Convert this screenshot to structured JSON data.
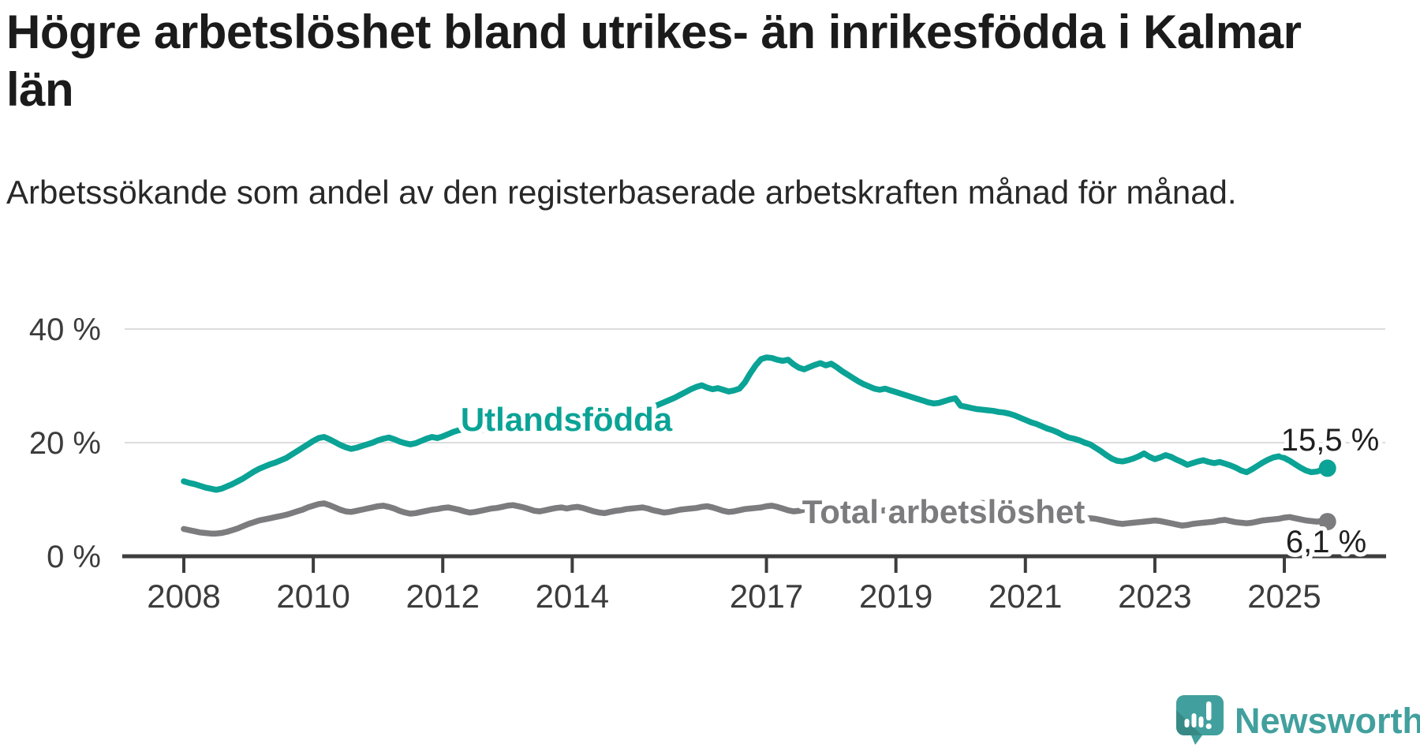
{
  "chart_data": {
    "type": "line",
    "title": "Högre arbetslöshet bland utrikes- än inrikesfödda i Kalmar län",
    "subtitle": "Arbetssökande som andel av den registerbaserade arbetskraften månad för månad.",
    "x_unit": "month",
    "x_start": "2008-01",
    "x_end": "2025-09",
    "ylim": [
      0,
      42
    ],
    "grid": "horizontal",
    "y_ticks": [
      {
        "label": "0 %",
        "value": 0
      },
      {
        "label": "20 %",
        "value": 20
      },
      {
        "label": "40 %",
        "value": 40
      }
    ],
    "x_ticks": [
      {
        "label": "2008",
        "year": 2008
      },
      {
        "label": "2010",
        "year": 2010
      },
      {
        "label": "2012",
        "year": 2012
      },
      {
        "label": "2014",
        "year": 2014
      },
      {
        "label": "2017",
        "year": 2017
      },
      {
        "label": "2019",
        "year": 2019
      },
      {
        "label": "2021",
        "year": 2021
      },
      {
        "label": "2023",
        "year": 2023
      },
      {
        "label": "2025",
        "year": 2025
      }
    ],
    "series": [
      {
        "name": "Utlandsfödda",
        "color": "#0aa396",
        "end_label": "15,5 %",
        "last_value": 15.5,
        "values": [
          13.2,
          12.9,
          12.7,
          12.4,
          12.1,
          11.9,
          11.7,
          11.9,
          12.3,
          12.7,
          13.2,
          13.7,
          14.3,
          14.9,
          15.4,
          15.8,
          16.2,
          16.5,
          16.9,
          17.3,
          17.9,
          18.5,
          19.1,
          19.7,
          20.3,
          20.8,
          21.0,
          20.6,
          20.1,
          19.6,
          19.2,
          18.9,
          19.1,
          19.4,
          19.7,
          20.0,
          20.4,
          20.7,
          20.9,
          20.6,
          20.2,
          19.9,
          19.7,
          19.9,
          20.3,
          20.7,
          21.0,
          20.8,
          21.1,
          21.5,
          21.9,
          22.2,
          22.4,
          22.1,
          21.9,
          22.1,
          22.4,
          22.6,
          22.4,
          22.7,
          23.0,
          23.3,
          23.5,
          23.2,
          22.9,
          23.1,
          22.8,
          22.6,
          22.9,
          23.2,
          23.4,
          23.3,
          23.5,
          23.7,
          23.6,
          23.4,
          23.7,
          24.0,
          24.2,
          24.1,
          24.4,
          24.7,
          24.9,
          25.1,
          25.4,
          25.7,
          26.0,
          26.3,
          26.7,
          27.1,
          27.5,
          27.9,
          28.4,
          28.9,
          29.4,
          29.8,
          30.1,
          29.7,
          29.4,
          29.6,
          29.3,
          29.0,
          29.2,
          29.5,
          30.6,
          32.2,
          33.6,
          34.7,
          35.0,
          34.9,
          34.6,
          34.4,
          34.6,
          33.8,
          33.2,
          32.9,
          33.3,
          33.7,
          34.0,
          33.6,
          33.9,
          33.3,
          32.6,
          32.0,
          31.4,
          30.8,
          30.3,
          29.9,
          29.5,
          29.3,
          29.5,
          29.2,
          28.9,
          28.6,
          28.3,
          28.0,
          27.7,
          27.4,
          27.1,
          26.9,
          27.0,
          27.3,
          27.6,
          27.8,
          26.5,
          26.3,
          26.1,
          25.9,
          25.8,
          25.7,
          25.6,
          25.4,
          25.3,
          25.1,
          24.8,
          24.4,
          24.0,
          23.6,
          23.3,
          22.9,
          22.5,
          22.2,
          21.8,
          21.3,
          20.9,
          20.7,
          20.4,
          20.0,
          19.7,
          19.1,
          18.5,
          17.8,
          17.2,
          16.8,
          16.7,
          16.9,
          17.2,
          17.6,
          18.1,
          17.5,
          17.1,
          17.4,
          17.8,
          17.5,
          17.0,
          16.6,
          16.1,
          16.4,
          16.7,
          16.9,
          16.6,
          16.4,
          16.6,
          16.3,
          16.0,
          15.6,
          15.1,
          14.8,
          15.3,
          15.9,
          16.5,
          17.0,
          17.4,
          17.6,
          17.3,
          16.8,
          16.2,
          15.6,
          15.1,
          14.8,
          14.9,
          15.2,
          15.5
        ]
      },
      {
        "name": "Total arbetslöshet",
        "color": "#7c7c7f",
        "end_label": "6,1 %",
        "last_value": 6.1,
        "values": [
          4.8,
          4.6,
          4.4,
          4.2,
          4.1,
          4.0,
          4.0,
          4.1,
          4.3,
          4.6,
          4.9,
          5.3,
          5.7,
          6.0,
          6.3,
          6.5,
          6.7,
          6.9,
          7.1,
          7.3,
          7.6,
          7.9,
          8.2,
          8.6,
          8.9,
          9.2,
          9.3,
          9.0,
          8.6,
          8.2,
          7.9,
          7.8,
          8.0,
          8.2,
          8.4,
          8.6,
          8.8,
          8.9,
          8.7,
          8.4,
          8.0,
          7.7,
          7.5,
          7.6,
          7.8,
          8.0,
          8.2,
          8.3,
          8.5,
          8.6,
          8.4,
          8.2,
          7.9,
          7.7,
          7.8,
          8.0,
          8.2,
          8.4,
          8.5,
          8.7,
          8.9,
          9.0,
          8.8,
          8.6,
          8.3,
          8.0,
          7.9,
          8.1,
          8.3,
          8.5,
          8.6,
          8.4,
          8.6,
          8.7,
          8.5,
          8.2,
          7.9,
          7.7,
          7.6,
          7.8,
          8.0,
          8.1,
          8.3,
          8.4,
          8.5,
          8.6,
          8.4,
          8.1,
          7.9,
          7.7,
          7.8,
          8.0,
          8.2,
          8.3,
          8.4,
          8.5,
          8.7,
          8.8,
          8.6,
          8.3,
          8.0,
          7.8,
          7.9,
          8.1,
          8.3,
          8.4,
          8.5,
          8.6,
          8.8,
          8.9,
          8.7,
          8.4,
          8.1,
          7.9,
          8.0,
          8.2,
          8.4,
          8.5,
          8.6,
          8.7,
          8.8,
          8.7,
          8.5,
          8.2,
          7.9,
          7.7,
          7.6,
          7.8,
          7.9,
          8.0,
          8.1,
          8.2,
          8.3,
          8.2,
          8.0,
          7.8,
          7.6,
          7.5,
          7.6,
          7.8,
          7.9,
          8.0,
          8.1,
          8.3,
          8.5,
          8.6,
          8.9,
          9.2,
          9.4,
          9.3,
          9.1,
          8.9,
          8.7,
          8.5,
          8.3,
          8.2,
          8.4,
          8.3,
          8.1,
          7.8,
          7.5,
          7.2,
          7.0,
          6.9,
          6.8,
          6.7,
          6.6,
          6.6,
          6.7,
          6.6,
          6.4,
          6.2,
          6.0,
          5.8,
          5.7,
          5.8,
          5.9,
          6.0,
          6.1,
          6.2,
          6.3,
          6.2,
          6.0,
          5.8,
          5.6,
          5.4,
          5.5,
          5.7,
          5.8,
          5.9,
          6.0,
          6.1,
          6.3,
          6.4,
          6.2,
          6.0,
          5.9,
          5.8,
          5.9,
          6.1,
          6.3,
          6.4,
          6.5,
          6.6,
          6.8,
          6.9,
          6.7,
          6.5,
          6.3,
          6.2,
          6.1,
          6.2,
          6.1
        ]
      }
    ]
  },
  "branding": {
    "logo_text": "Newsworthy",
    "brand_color": "#41a09d"
  },
  "colors": {
    "background": "#ffffff",
    "title_text": "#1b1b1b",
    "subtitle_text": "#282828",
    "axis_text": "#3c3c3c",
    "axis_line": "#3d3d3d",
    "gridline": "#dddddd",
    "annotation_text": "#1f1f1f"
  }
}
